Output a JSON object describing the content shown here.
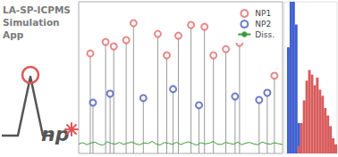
{
  "chart_data": [
    {
      "type": "line",
      "title": "LA-SP-ICPMS Simulation App",
      "annotations": [
        "np"
      ],
      "xlim": [
        0,
        100
      ],
      "ylim": [
        0,
        100
      ],
      "tick_labels": false,
      "grid": false,
      "legend": "upper right",
      "series": [
        {
          "name": "NP1",
          "type": "scatter",
          "marker": "circle_open",
          "color": "#e06c6c",
          "x": [
            5.7,
            13.2,
            17.2,
            23.3,
            26.9,
            38.8,
            43.2,
            48.9,
            55.1,
            61.7,
            66.1,
            72.2,
            78.9,
            96.0
          ],
          "values": [
            65.9,
            73.5,
            70.6,
            74.7,
            85.9,
            78.8,
            64.7,
            77.6,
            84.7,
            83.5,
            64.7,
            68.8,
            72.9,
            51.2
          ]
        },
        {
          "name": "NP2",
          "type": "scatter",
          "marker": "circle_open",
          "color": "#4a5db8",
          "x": [
            7.0,
            15.4,
            31.7,
            46.3,
            59.0,
            76.7,
            88.5,
            92.5
          ],
          "values": [
            33.5,
            39.4,
            36.5,
            42.4,
            31.8,
            37.6,
            35.3,
            40.0
          ]
        },
        {
          "name": "Diss.",
          "type": "line",
          "line_style": "solid",
          "color": "#3c9a3c",
          "x": [
            0,
            2,
            4,
            6,
            8,
            10,
            12,
            14,
            16,
            18,
            20,
            22,
            24,
            26,
            28,
            30,
            32,
            34,
            36,
            38,
            40,
            42,
            44,
            46,
            48,
            50,
            52,
            54,
            56,
            58,
            60,
            62,
            64,
            66,
            68,
            70,
            72,
            74,
            76,
            78,
            80,
            82,
            84,
            86,
            88,
            90,
            92,
            94,
            96,
            98,
            100
          ],
          "values": [
            6.2,
            7.1,
            5.8,
            6.9,
            7.5,
            6.0,
            5.4,
            7.8,
            6.6,
            6.1,
            7.3,
            5.9,
            6.8,
            7.6,
            6.3,
            5.7,
            7.0,
            6.5,
            8.0,
            6.2,
            5.6,
            7.2,
            6.7,
            6.0,
            7.4,
            5.8,
            6.9,
            7.7,
            6.4,
            5.5,
            7.1,
            6.3,
            6.8,
            7.9,
            6.1,
            5.9,
            7.3,
            6.6,
            6.0,
            7.5,
            5.7,
            6.9,
            7.2,
            6.2,
            5.8,
            7.6,
            6.5,
            6.1,
            7.0,
            6.4,
            5.9
          ]
        }
      ]
    },
    {
      "type": "histogram",
      "xlim": [
        0,
        100
      ],
      "ylim": [
        0,
        100
      ],
      "tick_labels": false,
      "grid": false,
      "bins": [
        0,
        5,
        10,
        15,
        20,
        25,
        30,
        35,
        40,
        45,
        50,
        55,
        60,
        65,
        70,
        75,
        80,
        85,
        90,
        95,
        100
      ],
      "series": [
        {
          "name": "NP2",
          "color": "#3f5fd0",
          "values": [
            0,
            70,
            100,
            100,
            85,
            20,
            0,
            0,
            0,
            0,
            0,
            0,
            0,
            0,
            0,
            0,
            0,
            0,
            0,
            0
          ]
        },
        {
          "name": "NP1",
          "color": "#d85c5c",
          "values": [
            0,
            0,
            0,
            0,
            0,
            5,
            20,
            35,
            48,
            55,
            52,
            45,
            50,
            42,
            38,
            30,
            25,
            18,
            10,
            6
          ]
        }
      ]
    }
  ]
}
